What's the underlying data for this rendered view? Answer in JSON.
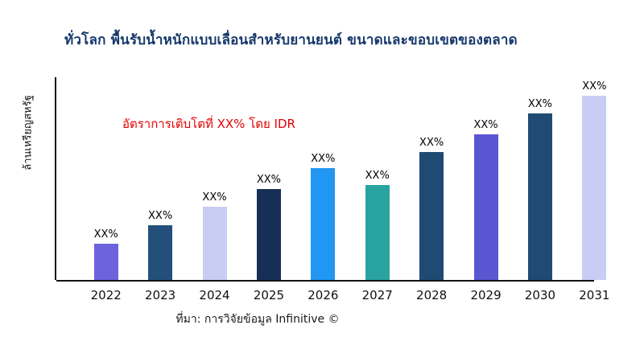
{
  "colors": {
    "title": "#16386b",
    "annotation": "#e60000",
    "axis": "#111111",
    "background": "#ffffff"
  },
  "chart_data": {
    "type": "bar",
    "title": "ทั่วโลก พื้นรับน้ำหนักแบบเลื่อนสำหรับยานยนต์ ขนาดและขอบเขตของตลาด",
    "xlabel": "",
    "ylabel": "ล้านเหรียญสหรัฐ",
    "categories": [
      "2022",
      "2023",
      "2024",
      "2025",
      "2026",
      "2027",
      "2028",
      "2029",
      "2030",
      "2031"
    ],
    "values": [
      18,
      27,
      36,
      45,
      55,
      47,
      63,
      72,
      82,
      91
    ],
    "units": "relative bar height, % of plot height (numeric axis not labeled)",
    "ylim": [
      0,
      100
    ],
    "bar_labels": [
      "XX%",
      "XX%",
      "XX%",
      "XX%",
      "XX%",
      "XX%",
      "XX%",
      "XX%",
      "XX%",
      "XX%"
    ],
    "bar_colors": [
      "#6c63dd",
      "#234f7a",
      "#c9cdf3",
      "#172f56",
      "#2196f3",
      "#29a3a0",
      "#1f4a73",
      "#5a55d0",
      "#1f4a73",
      "#c9cdf3"
    ],
    "annotation": "อัตราการเติบโตที่ XX% โดย IDR",
    "source": "ที่มา: การวิจัยข้อมูล Infinitive ©",
    "legend": "none",
    "grid": false
  }
}
